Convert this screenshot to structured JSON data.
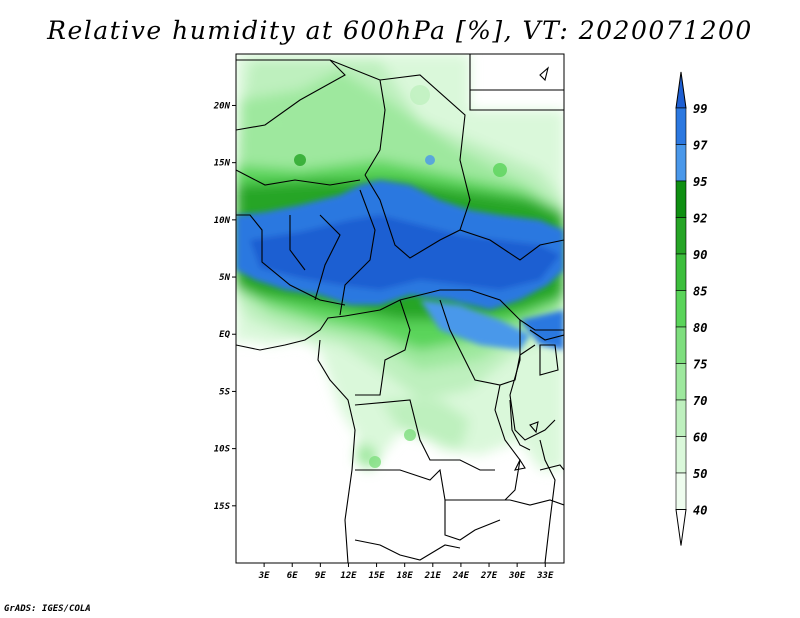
{
  "title": "Relative humidity at 600hPa [%], VT: 2020071200",
  "credit": "GrADS: IGES/COLA",
  "lat_labels": [
    "20N",
    "15N",
    "10N",
    "5N",
    "EQ",
    "5S",
    "10S",
    "15S"
  ],
  "lat_values": [
    20,
    15,
    10,
    5,
    0,
    -5,
    -10,
    -15
  ],
  "lon_labels": [
    "3E",
    "6E",
    "9E",
    "12E",
    "15E",
    "18E",
    "21E",
    "24E",
    "27E",
    "30E",
    "33E"
  ],
  "lon_values": [
    3,
    6,
    9,
    12,
    15,
    18,
    21,
    24,
    27,
    30,
    33
  ],
  "map_extent": {
    "lon_min": 0,
    "lon_max": 35,
    "lat_min": -20,
    "lat_max": 24.5
  },
  "legend": {
    "levels": [
      "99",
      "97",
      "95",
      "92",
      "90",
      "85",
      "80",
      "75",
      "70",
      "60",
      "50",
      "40"
    ],
    "colors": [
      "#1e5fd2",
      "#2c78e0",
      "#4a98ea",
      "#0f8f12",
      "#26a526",
      "#3cbe3c",
      "#5ad45a",
      "#7ede7e",
      "#9ee89e",
      "#bef0be",
      "#daf8da",
      "#eefcee",
      "#ffffff"
    ]
  }
}
